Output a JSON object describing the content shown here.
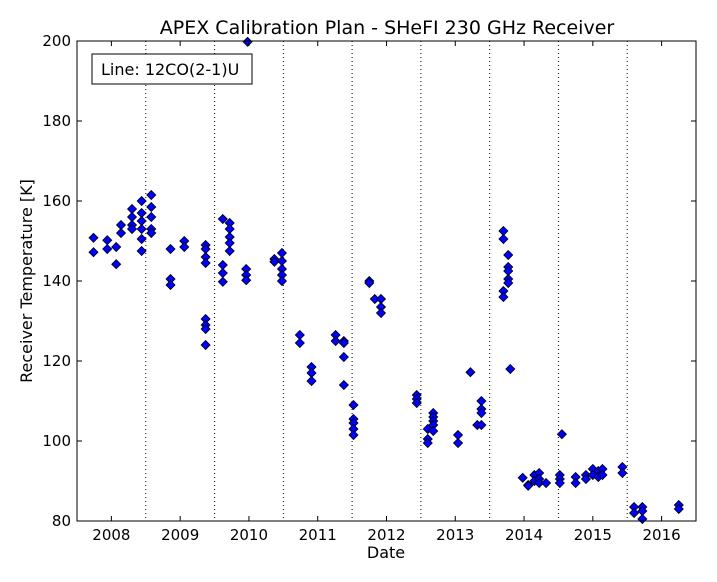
{
  "chart_data": {
    "type": "scatter",
    "title": "APEX Calibration Plan - SHeFI 230 GHz Receiver",
    "xlabel": "Date",
    "ylabel": "Receiver Temperature [K]",
    "xlim": [
      2007.5,
      2016.5
    ],
    "ylim": [
      80,
      200
    ],
    "x_ticks": [
      2008,
      2009,
      2010,
      2011,
      2012,
      2013,
      2014,
      2015,
      2016
    ],
    "x_tick_labels": [
      "2008",
      "2009",
      "2010",
      "2011",
      "2012",
      "2013",
      "2014",
      "2015",
      "2016"
    ],
    "y_ticks": [
      80,
      100,
      120,
      140,
      160,
      180,
      200
    ],
    "y_tick_labels": [
      "80",
      "100",
      "120",
      "140",
      "160",
      "180",
      "200"
    ],
    "vertical_dotted_lines": [
      2008.5,
      2009.5,
      2010.5,
      2011.5,
      2012.5,
      2013.5,
      2014.5,
      2015.5
    ],
    "legend_text": "Line: 12CO(2-1)U",
    "legend_position": "top-left",
    "marker_color": "#0000ff",
    "series": [
      {
        "points": [
          [
            2007.74,
            147.2
          ],
          [
            2007.74,
            150.8
          ],
          [
            2007.94,
            150.2
          ],
          [
            2007.94,
            148.0
          ],
          [
            2008.07,
            148.5
          ],
          [
            2008.07,
            144.2
          ],
          [
            2008.14,
            154.0
          ],
          [
            2008.14,
            152.0
          ],
          [
            2008.3,
            158.0
          ],
          [
            2008.3,
            156.0
          ],
          [
            2008.3,
            154.0
          ],
          [
            2008.3,
            153.0
          ],
          [
            2008.44,
            160.0
          ],
          [
            2008.44,
            157.0
          ],
          [
            2008.44,
            155.0
          ],
          [
            2008.44,
            153.0
          ],
          [
            2008.44,
            150.5
          ],
          [
            2008.44,
            147.5
          ],
          [
            2008.58,
            161.5
          ],
          [
            2008.58,
            158.5
          ],
          [
            2008.58,
            156.0
          ],
          [
            2008.58,
            153.0
          ],
          [
            2008.58,
            152.0
          ],
          [
            2008.86,
            148.0
          ],
          [
            2008.86,
            140.5
          ],
          [
            2008.86,
            139.0
          ],
          [
            2009.06,
            150.0
          ],
          [
            2009.06,
            148.5
          ],
          [
            2009.37,
            149.0
          ],
          [
            2009.37,
            148.0
          ],
          [
            2009.37,
            146.0
          ],
          [
            2009.37,
            144.5
          ],
          [
            2009.37,
            130.5
          ],
          [
            2009.37,
            129.0
          ],
          [
            2009.37,
            128.0
          ],
          [
            2009.37,
            124.0
          ],
          [
            2009.62,
            155.5
          ],
          [
            2009.62,
            144.0
          ],
          [
            2009.62,
            142.0
          ],
          [
            2009.62,
            139.8
          ],
          [
            2009.72,
            154.5
          ],
          [
            2009.72,
            153.0
          ],
          [
            2009.72,
            151.0
          ],
          [
            2009.72,
            149.5
          ],
          [
            2009.72,
            147.5
          ],
          [
            2009.96,
            143.0
          ],
          [
            2009.96,
            141.5
          ],
          [
            2009.96,
            140.2
          ],
          [
            2009.98,
            199.8
          ],
          [
            2010.37,
            145.5
          ],
          [
            2010.37,
            144.8
          ],
          [
            2010.48,
            147.0
          ],
          [
            2010.48,
            145.0
          ],
          [
            2010.48,
            143.0
          ],
          [
            2010.48,
            141.5
          ],
          [
            2010.48,
            140.0
          ],
          [
            2010.74,
            126.5
          ],
          [
            2010.74,
            124.5
          ],
          [
            2010.91,
            118.5
          ],
          [
            2010.91,
            117.0
          ],
          [
            2010.91,
            115.0
          ],
          [
            2011.26,
            126.5
          ],
          [
            2011.26,
            125.0
          ],
          [
            2011.38,
            125.0
          ],
          [
            2011.38,
            124.5
          ],
          [
            2011.38,
            121.0
          ],
          [
            2011.38,
            114.0
          ],
          [
            2011.52,
            109.0
          ],
          [
            2011.52,
            105.5
          ],
          [
            2011.52,
            104.5
          ],
          [
            2011.52,
            103.0
          ],
          [
            2011.52,
            101.5
          ],
          [
            2011.75,
            140.0
          ],
          [
            2011.75,
            139.5
          ],
          [
            2011.83,
            135.5
          ],
          [
            2011.92,
            135.5
          ],
          [
            2011.92,
            133.5
          ],
          [
            2011.92,
            132.0
          ],
          [
            2012.44,
            111.5
          ],
          [
            2012.44,
            110.5
          ],
          [
            2012.44,
            109.5
          ],
          [
            2012.6,
            103.0
          ],
          [
            2012.6,
            100.5
          ],
          [
            2012.6,
            99.5
          ],
          [
            2012.68,
            107.0
          ],
          [
            2012.68,
            106.0
          ],
          [
            2012.68,
            105.0
          ],
          [
            2012.68,
            104.0
          ],
          [
            2012.68,
            102.5
          ],
          [
            2013.04,
            101.5
          ],
          [
            2013.04,
            99.5
          ],
          [
            2013.22,
            117.2
          ],
          [
            2013.32,
            104.0
          ],
          [
            2013.38,
            110.0
          ],
          [
            2013.38,
            108.0
          ],
          [
            2013.38,
            107.0
          ],
          [
            2013.38,
            104.0
          ],
          [
            2013.7,
            152.5
          ],
          [
            2013.7,
            150.5
          ],
          [
            2013.7,
            137.5
          ],
          [
            2013.7,
            136.0
          ],
          [
            2013.77,
            146.5
          ],
          [
            2013.77,
            143.5
          ],
          [
            2013.77,
            142.5
          ],
          [
            2013.77,
            140.5
          ],
          [
            2013.77,
            139.5
          ],
          [
            2013.8,
            118.0
          ],
          [
            2013.98,
            90.8
          ],
          [
            2014.06,
            89.0
          ],
          [
            2014.06,
            88.8
          ],
          [
            2014.15,
            91.5
          ],
          [
            2014.15,
            90.0
          ],
          [
            2014.22,
            92.0
          ],
          [
            2014.22,
            90.5
          ],
          [
            2014.22,
            89.5
          ],
          [
            2014.32,
            89.5
          ],
          [
            2014.52,
            91.5
          ],
          [
            2014.52,
            90.5
          ],
          [
            2014.52,
            89.5
          ],
          [
            2014.55,
            101.7
          ],
          [
            2014.75,
            91.0
          ],
          [
            2014.75,
            89.5
          ],
          [
            2014.9,
            91.5
          ],
          [
            2014.9,
            90.5
          ],
          [
            2015.0,
            93.0
          ],
          [
            2015.0,
            91.5
          ],
          [
            2015.08,
            92.5
          ],
          [
            2015.08,
            91.0
          ],
          [
            2015.14,
            93.0
          ],
          [
            2015.14,
            91.5
          ],
          [
            2015.43,
            93.5
          ],
          [
            2015.43,
            92.0
          ],
          [
            2015.6,
            83.5
          ],
          [
            2015.6,
            82.0
          ],
          [
            2015.72,
            83.5
          ],
          [
            2015.72,
            82.5
          ],
          [
            2015.72,
            80.5
          ],
          [
            2016.25,
            84.0
          ],
          [
            2016.25,
            83.0
          ]
        ]
      }
    ]
  }
}
